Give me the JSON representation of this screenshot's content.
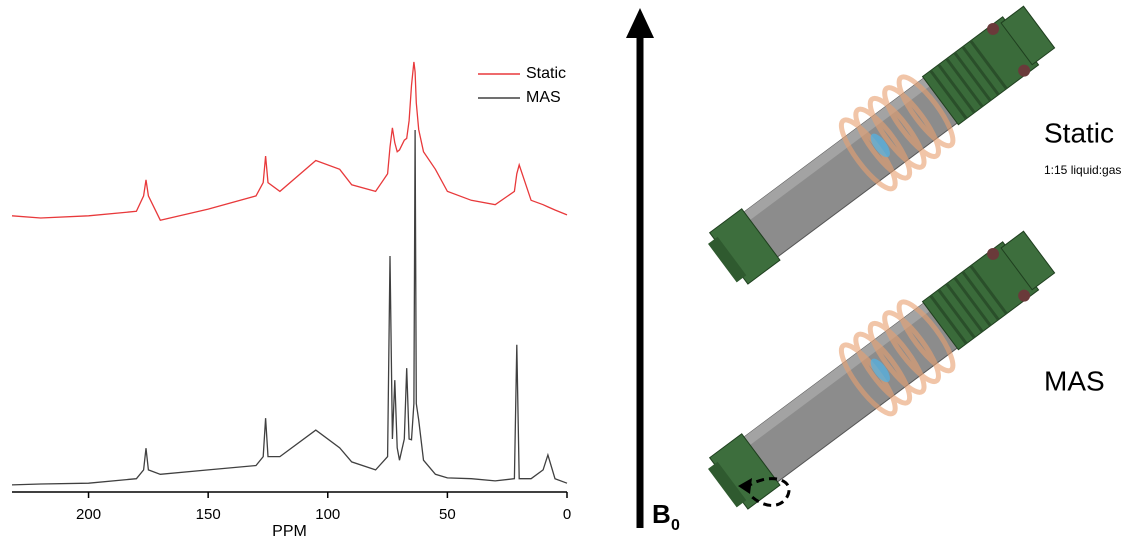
{
  "chart_data": {
    "type": "line",
    "xlabel": "PPM",
    "x": [
      232,
      220,
      200,
      180,
      177,
      176,
      175,
      170,
      150,
      130,
      127,
      126,
      125,
      120,
      105,
      95,
      90,
      80,
      75,
      74,
      73,
      72,
      71,
      70,
      68,
      67,
      66,
      65,
      64,
      63.5,
      63,
      62,
      60,
      55,
      50,
      40,
      30,
      22,
      21,
      20,
      15,
      10,
      8,
      5,
      0
    ],
    "series": [
      {
        "name": "Static",
        "color": "#e8393b",
        "values": [
          62.5,
          62,
          62.5,
          63.5,
          67,
          70.6,
          67,
          61.5,
          64,
          67,
          70,
          76,
          70,
          68,
          75,
          73,
          69.5,
          68,
          72,
          78,
          82.4,
          79,
          77,
          77.4,
          79.6,
          80,
          84,
          92,
          97.3,
          95,
          88,
          82,
          77,
          73,
          68,
          66,
          65,
          68,
          72,
          74,
          66,
          65,
          64.5,
          63.8,
          62.7
        ]
      },
      {
        "name": "MAS",
        "color": "#404040",
        "values": [
          1.6,
          1.8,
          2,
          3,
          5,
          9.9,
          5,
          4,
          5,
          6,
          8,
          16.7,
          8,
          8,
          14,
          10,
          6.8,
          5,
          8,
          53.4,
          12,
          25.3,
          10,
          7.2,
          12,
          28,
          12,
          11.8,
          20,
          81.9,
          20,
          16.3,
          7.2,
          4,
          3.2,
          3,
          2.5,
          3,
          33.3,
          3,
          3,
          5,
          8.4,
          3,
          2
        ]
      }
    ],
    "xlim": [
      232,
      0
    ],
    "xticks": [
      200,
      150,
      100,
      50,
      0
    ],
    "ylim": [
      0,
      100
    ],
    "legend": "top-right"
  },
  "diagram": {
    "field_label": "B",
    "field_subscript": "0",
    "static_label": "Static",
    "static_note": "1:15 liquid:gas",
    "mas_label": "MAS"
  }
}
